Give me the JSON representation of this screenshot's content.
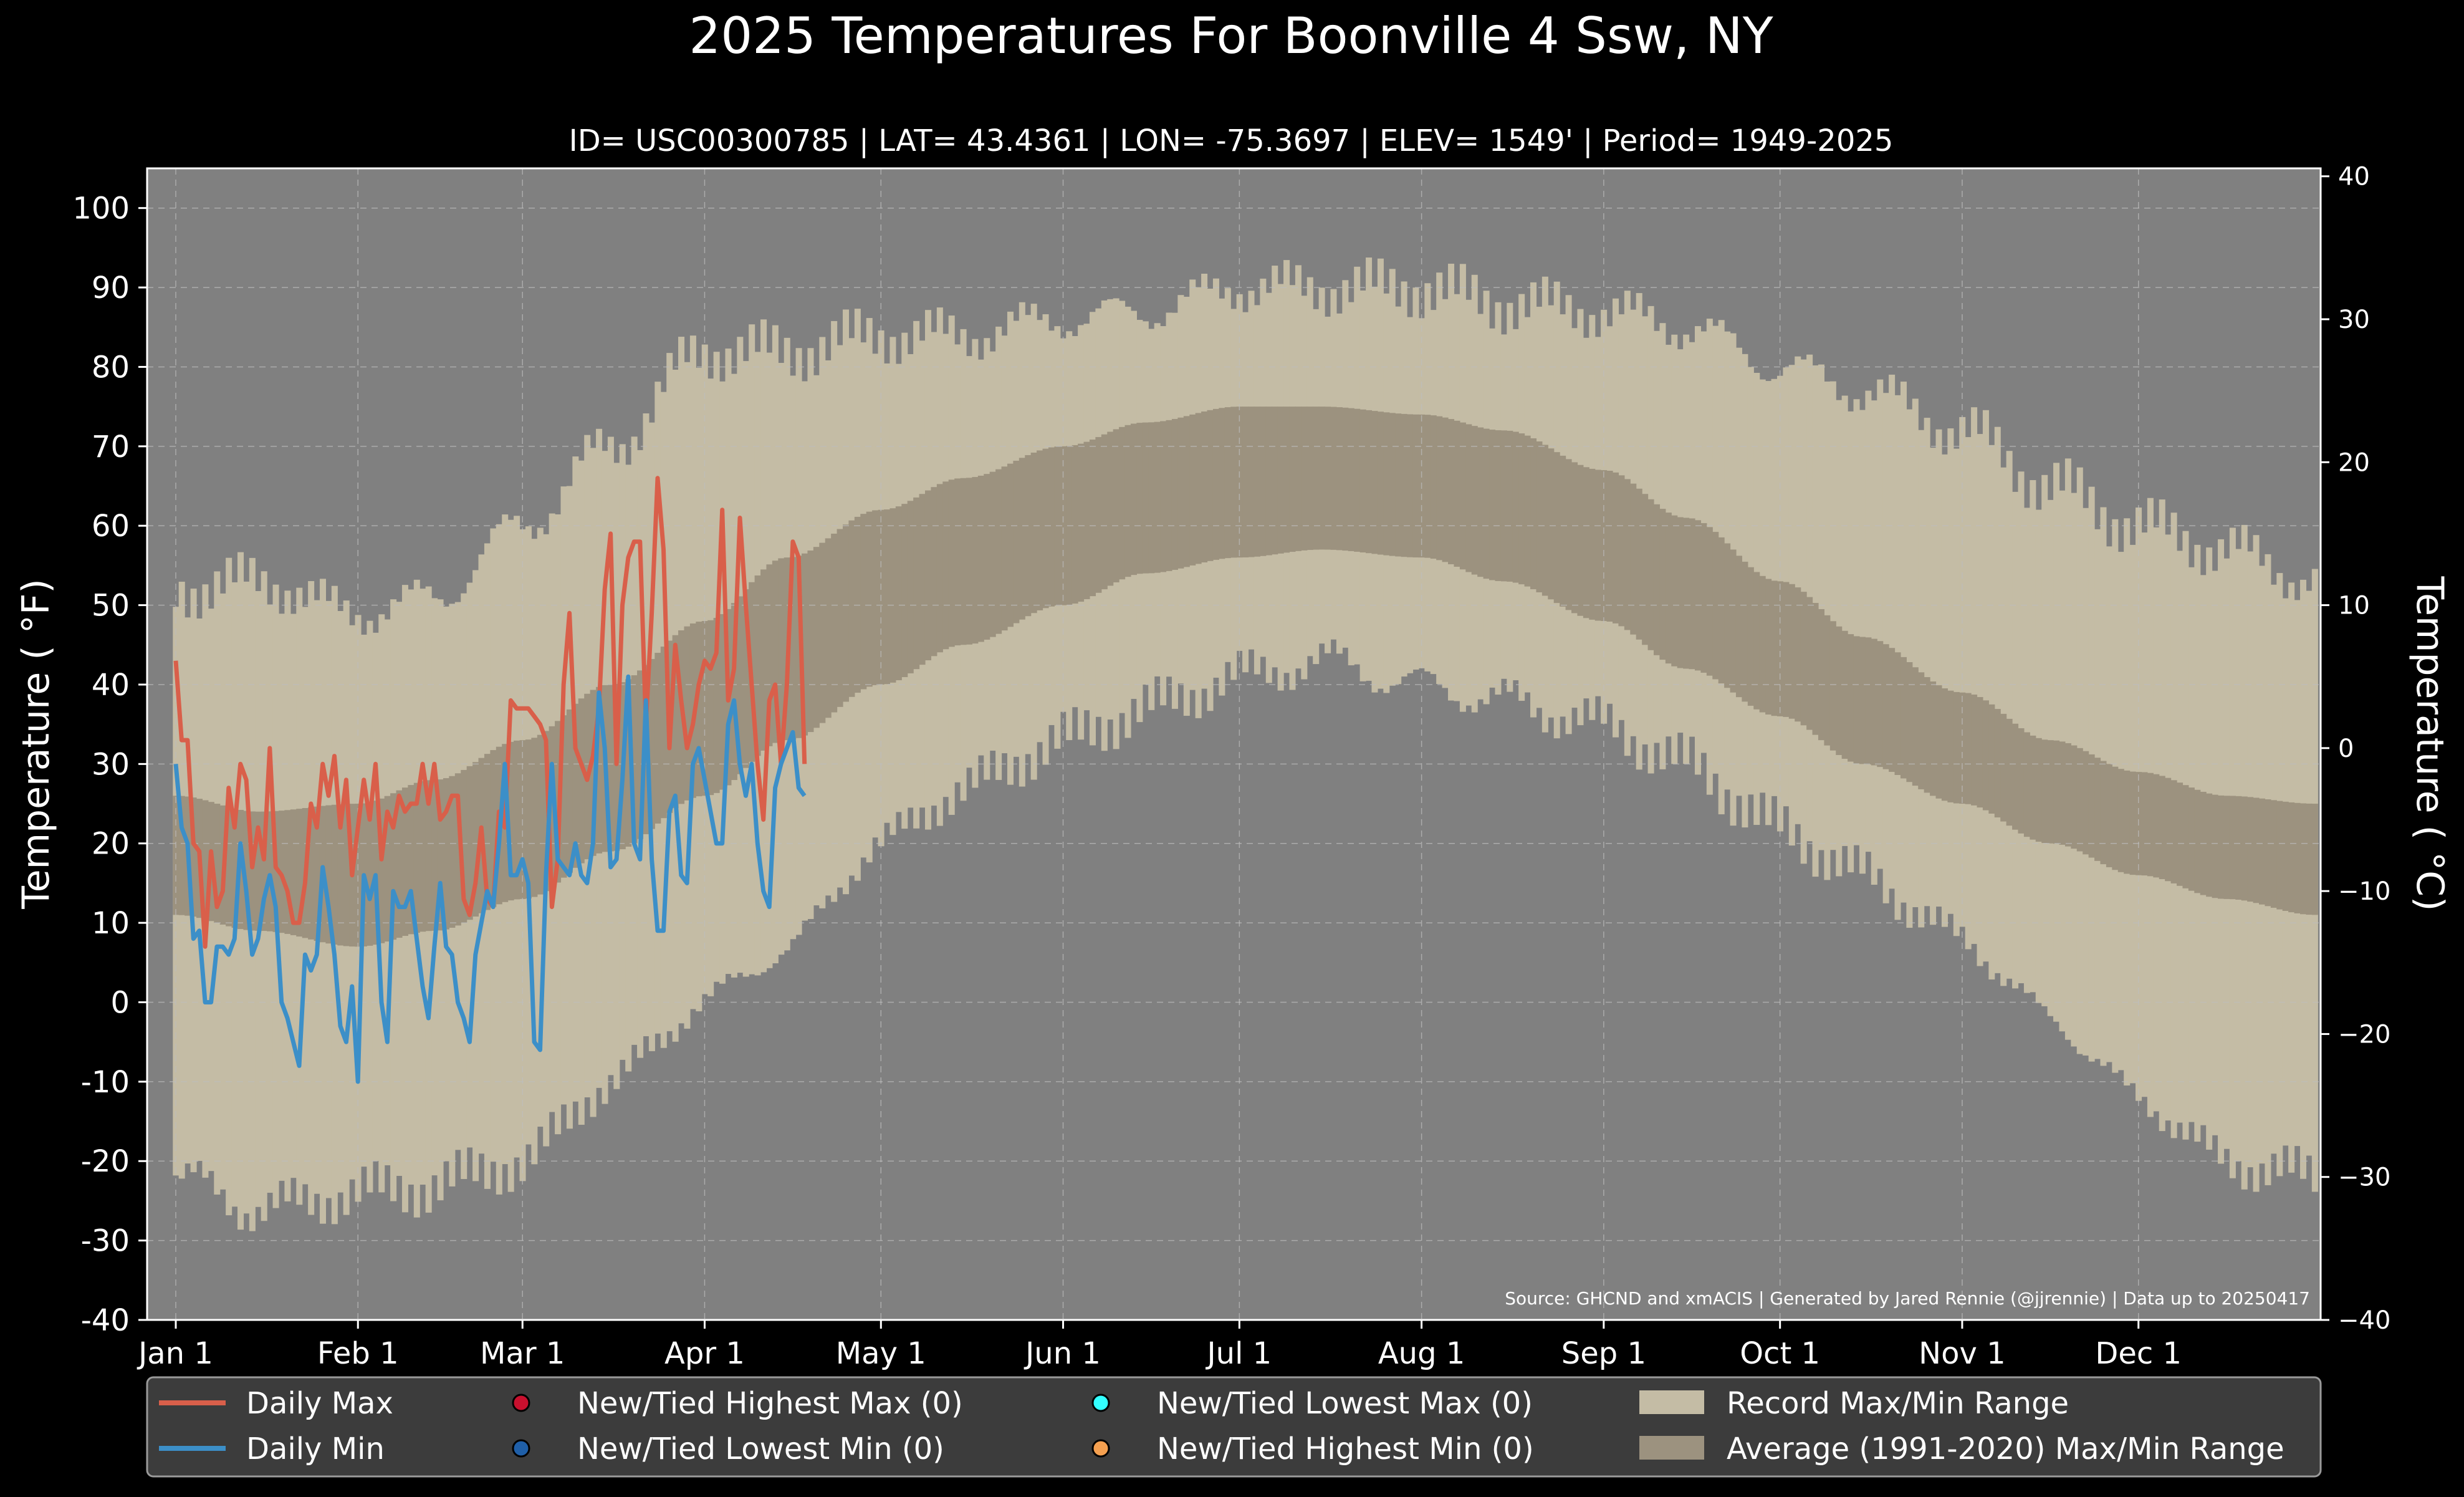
{
  "chart_data": {
    "type": "bar",
    "title": "2025 Temperatures For Boonville 4 Ssw, NY",
    "subtitle": "ID= USC00300785 | LAT= 43.4361 | LON= -75.3697 | ELEV= 1549' | Period= 1949-2025",
    "ylabel": "Temperature ($^\\circ$F)",
    "ylabel_display": "Temperature ( °F)",
    "y2label_display": "Temperature ( °C)",
    "source": "Source: GHCND and xmACIS | Generated by Jared Rennie (@jjrennie) | Data up to 20250417",
    "ylim": [
      -40,
      105
    ],
    "y_ticks": [
      "100",
      "90",
      "80",
      "70",
      "60",
      "50",
      "40",
      "30",
      "20",
      "10",
      "0",
      "-10",
      "-20",
      "-30",
      "-40"
    ],
    "y2_ticks": [
      "40",
      "30",
      "20",
      "10",
      "0",
      "−10",
      "−20",
      "−30",
      "−40"
    ],
    "x_ticks": [
      {
        "label": "Jan 1",
        "day": 1
      },
      {
        "label": "Feb 1",
        "day": 32
      },
      {
        "label": "Mar 1",
        "day": 60
      },
      {
        "label": "Apr 1",
        "day": 91
      },
      {
        "label": "May 1",
        "day": 121
      },
      {
        "label": "Jun 1",
        "day": 152
      },
      {
        "label": "Jul 1",
        "day": 182
      },
      {
        "label": "Aug 1",
        "day": 213
      },
      {
        "label": "Sep 1",
        "day": 244
      },
      {
        "label": "Oct 1",
        "day": 274
      },
      {
        "label": "Nov 1",
        "day": 305
      },
      {
        "label": "Dec 1",
        "day": 335
      }
    ],
    "grid": true,
    "legend_position": "bottom",
    "legend": {
      "daily_max": "Daily Max",
      "daily_min": "Daily Min",
      "new_highest_max": "New/Tied Highest Max (0)",
      "new_lowest_min": "New/Tied Lowest Min (0)",
      "new_lowest_max": "New/Tied Lowest Max (0)",
      "new_highest_min": "New/Tied Highest Min (0)",
      "record_range": "Record Max/Min Range",
      "average_range": "Average (1991-2020) Max/Min Range"
    },
    "record_max_anchors": [
      [
        1,
        52
      ],
      [
        15,
        53
      ],
      [
        32,
        49
      ],
      [
        45,
        51
      ],
      [
        60,
        60
      ],
      [
        75,
        70
      ],
      [
        91,
        82
      ],
      [
        105,
        82
      ],
      [
        121,
        84
      ],
      [
        135,
        84
      ],
      [
        152,
        86
      ],
      [
        166,
        87
      ],
      [
        182,
        90
      ],
      [
        196,
        90
      ],
      [
        213,
        90
      ],
      [
        227,
        88
      ],
      [
        244,
        87
      ],
      [
        258,
        85
      ],
      [
        274,
        80
      ],
      [
        288,
        77
      ],
      [
        305,
        72
      ],
      [
        320,
        65
      ],
      [
        335,
        60
      ],
      [
        350,
        57
      ],
      [
        365,
        53
      ]
    ],
    "record_min_anchors": [
      [
        1,
        -22
      ],
      [
        15,
        -26
      ],
      [
        32,
        -24
      ],
      [
        45,
        -23
      ],
      [
        60,
        -20
      ],
      [
        75,
        -10
      ],
      [
        91,
        0
      ],
      [
        105,
        7
      ],
      [
        121,
        20
      ],
      [
        135,
        27
      ],
      [
        152,
        33
      ],
      [
        166,
        37
      ],
      [
        182,
        41
      ],
      [
        196,
        43
      ],
      [
        213,
        40
      ],
      [
        227,
        38
      ],
      [
        244,
        35
      ],
      [
        258,
        30
      ],
      [
        274,
        22
      ],
      [
        288,
        16
      ],
      [
        305,
        8
      ],
      [
        320,
        -2
      ],
      [
        335,
        -12
      ],
      [
        350,
        -20
      ],
      [
        365,
        -22
      ]
    ],
    "avg_max_anchors": [
      [
        1,
        26
      ],
      [
        15,
        24
      ],
      [
        32,
        25
      ],
      [
        45,
        28
      ],
      [
        60,
        33
      ],
      [
        75,
        40
      ],
      [
        91,
        48
      ],
      [
        105,
        56
      ],
      [
        121,
        62
      ],
      [
        135,
        66
      ],
      [
        152,
        70
      ],
      [
        166,
        73
      ],
      [
        182,
        75
      ],
      [
        196,
        75
      ],
      [
        213,
        74
      ],
      [
        227,
        72
      ],
      [
        244,
        67
      ],
      [
        258,
        61
      ],
      [
        274,
        53
      ],
      [
        288,
        46
      ],
      [
        305,
        39
      ],
      [
        320,
        33
      ],
      [
        335,
        29
      ],
      [
        350,
        26
      ],
      [
        365,
        25
      ]
    ],
    "avg_min_anchors": [
      [
        1,
        11
      ],
      [
        15,
        9
      ],
      [
        32,
        7
      ],
      [
        45,
        9
      ],
      [
        60,
        13
      ],
      [
        75,
        19
      ],
      [
        91,
        26
      ],
      [
        105,
        33
      ],
      [
        121,
        40
      ],
      [
        135,
        45
      ],
      [
        152,
        50
      ],
      [
        166,
        54
      ],
      [
        182,
        56
      ],
      [
        196,
        57
      ],
      [
        213,
        56
      ],
      [
        227,
        53
      ],
      [
        244,
        48
      ],
      [
        258,
        42
      ],
      [
        274,
        36
      ],
      [
        288,
        30
      ],
      [
        305,
        25
      ],
      [
        320,
        20
      ],
      [
        335,
        16
      ],
      [
        350,
        13
      ],
      [
        365,
        11
      ]
    ],
    "series": [
      {
        "name": "Daily Max",
        "color": "#d95f4a",
        "start_day": 1,
        "values": [
          43,
          33,
          33,
          20,
          19,
          7,
          19,
          12,
          14,
          27,
          22,
          30,
          28,
          17,
          22,
          18,
          32,
          17,
          16,
          14,
          10,
          10,
          15,
          25,
          22,
          30,
          26,
          31,
          22,
          28,
          16,
          22,
          28,
          23,
          30,
          18,
          24,
          22,
          26,
          24,
          25,
          25,
          30,
          25,
          30,
          23,
          24,
          26,
          26,
          13,
          11,
          15,
          22,
          13,
          12,
          24,
          22,
          38,
          37,
          37,
          37,
          36,
          35,
          33,
          12,
          18,
          40,
          49,
          32,
          30,
          28,
          31,
          37,
          52,
          59,
          30,
          50,
          56,
          58,
          58,
          35,
          49,
          66,
          57,
          32,
          45,
          38,
          32,
          35,
          40,
          43,
          42,
          44,
          62,
          38,
          42,
          61,
          50,
          40,
          30,
          23,
          38,
          40,
          30,
          40,
          58,
          56,
          30
        ]
      },
      {
        "name": "Daily Min",
        "color": "#3c8fc8",
        "start_day": 1,
        "values": [
          30,
          22,
          20,
          8,
          9,
          0,
          0,
          7,
          7,
          6,
          8,
          20,
          14,
          6,
          8,
          13,
          16,
          12,
          0,
          -2,
          -5,
          -8,
          6,
          4,
          6,
          17,
          12,
          6,
          -3,
          -5,
          2,
          -10,
          16,
          13,
          16,
          0,
          -5,
          14,
          12,
          12,
          14,
          8,
          2,
          -2,
          7,
          15,
          7,
          6,
          0,
          -2,
          -5,
          6,
          10,
          14,
          12,
          20,
          30,
          16,
          16,
          18,
          15,
          -5,
          -6,
          16,
          30,
          18,
          17,
          16,
          20,
          16,
          15,
          20,
          39,
          32,
          17,
          18,
          28,
          41,
          20,
          18,
          38,
          18,
          9,
          9,
          24,
          26,
          16,
          15,
          30,
          32,
          28,
          24,
          20,
          20,
          35,
          38,
          30,
          26,
          30,
          20,
          14,
          12,
          27,
          30,
          32,
          34,
          27,
          26
        ]
      }
    ]
  }
}
